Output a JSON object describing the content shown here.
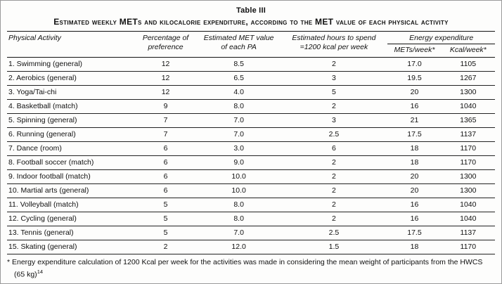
{
  "page": {
    "title": "Table III",
    "subtitle": "Estimated weekly METs and kilocalorie expenditure, according to the MET value of each physical activity"
  },
  "table": {
    "headers": {
      "activity": "Physical Activity",
      "percentage": "Percentage of preference",
      "met_value": "Estimated MET value of each PA",
      "hours": "Estimated hours to spend =1200 kcal per week",
      "energy_group": "Energy expenditure",
      "mets_week": "METs/week*",
      "kcal_week": "Kcal/week*"
    },
    "rows": [
      {
        "activity": "1. Swimming (general)",
        "percentage": "12",
        "met_value": "8.5",
        "hours": "2",
        "mets_week": "17.0",
        "kcal_week": "1105"
      },
      {
        "activity": "2. Aerobics (general)",
        "percentage": "12",
        "met_value": "6.5",
        "hours": "3",
        "mets_week": "19.5",
        "kcal_week": "1267"
      },
      {
        "activity": "3. Yoga/Tai-chi",
        "percentage": "12",
        "met_value": "4.0",
        "hours": "5",
        "mets_week": "20",
        "kcal_week": "1300"
      },
      {
        "activity": "4. Basketball (match)",
        "percentage": "9",
        "met_value": "8.0",
        "hours": "2",
        "mets_week": "16",
        "kcal_week": "1040"
      },
      {
        "activity": "5. Spinning (general)",
        "percentage": "7",
        "met_value": "7.0",
        "hours": "3",
        "mets_week": "21",
        "kcal_week": "1365"
      },
      {
        "activity": "6. Running (general)",
        "percentage": "7",
        "met_value": "7.0",
        "hours": "2.5",
        "mets_week": "17.5",
        "kcal_week": "1137"
      },
      {
        "activity": "7. Dance (room)",
        "percentage": "6",
        "met_value": "3.0",
        "hours": "6",
        "mets_week": "18",
        "kcal_week": "1170"
      },
      {
        "activity": "8. Football soccer (match)",
        "percentage": "6",
        "met_value": "9.0",
        "hours": "2",
        "mets_week": "18",
        "kcal_week": "1170"
      },
      {
        "activity": "9. Indoor football (match)",
        "percentage": "6",
        "met_value": "10.0",
        "hours": "2",
        "mets_week": "20",
        "kcal_week": "1300"
      },
      {
        "activity": "10. Martial arts (general)",
        "percentage": "6",
        "met_value": "10.0",
        "hours": "2",
        "mets_week": "20",
        "kcal_week": "1300"
      },
      {
        "activity": "11. Volleyball (match)",
        "percentage": "5",
        "met_value": "8.0",
        "hours": "2",
        "mets_week": "16",
        "kcal_week": "1040"
      },
      {
        "activity": "12. Cycling (general)",
        "percentage": "5",
        "met_value": "8.0",
        "hours": "2",
        "mets_week": "16",
        "kcal_week": "1040"
      },
      {
        "activity": "13. Tennis (general)",
        "percentage": "5",
        "met_value": "7.0",
        "hours": "2.5",
        "mets_week": "17.5",
        "kcal_week": "1137"
      },
      {
        "activity": "15. Skating (general)",
        "percentage": "2",
        "met_value": "12.0",
        "hours": "1.5",
        "mets_week": "18",
        "kcal_week": "1170"
      }
    ]
  },
  "footnote": {
    "text": "* Energy expenditure calculation of 1200 Kcal per week for the activities was made in considering the mean weight of participants from the HWCS (65 kg)",
    "reference": "14"
  }
}
